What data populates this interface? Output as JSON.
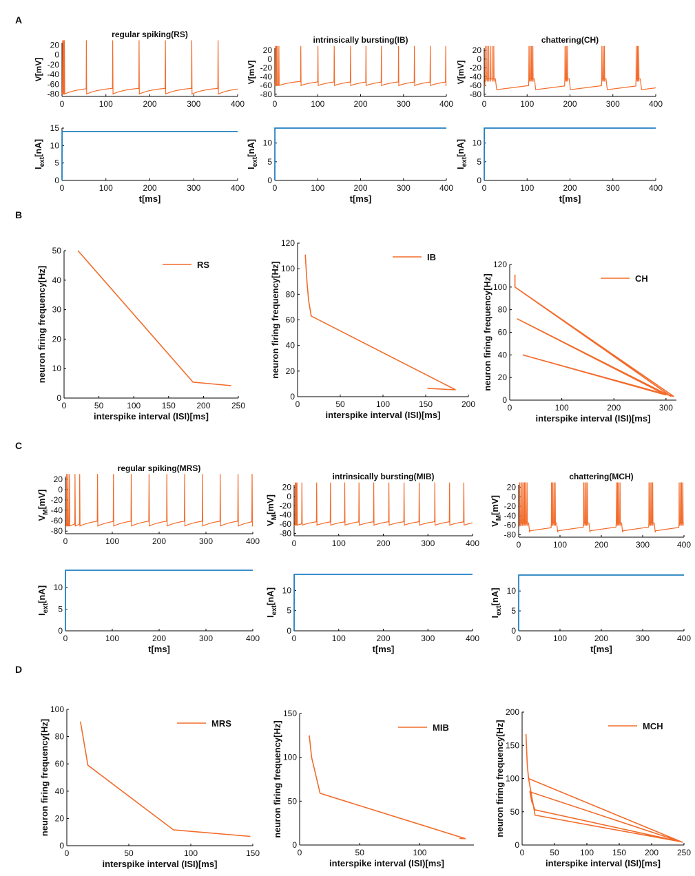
{
  "panel_letters": [
    "A",
    "B",
    "C",
    "D"
  ],
  "colors": {
    "voltage": "#f26b2a",
    "current": "#1f7fc0",
    "frequency": "#f26b2a"
  },
  "chart_data": [
    {
      "id": "A-RS-V",
      "type": "line",
      "title": "regular spiking(RS)",
      "xlabel": "",
      "ylabel": "V[mV]",
      "ylabel_sub": "",
      "xlim": [
        0,
        400
      ],
      "ylim": [
        -85,
        25
      ],
      "xticks": [
        0,
        100,
        200,
        300,
        400
      ],
      "yticks": [
        -80,
        -60,
        -40,
        -20,
        0,
        20
      ],
      "model": "rs",
      "spike_times": [
        1,
        3,
        5,
        55,
        115,
        175,
        235,
        295,
        355
      ],
      "v_rest": -80,
      "v_reset": -75,
      "v_peak": 30
    },
    {
      "id": "A-IB-V",
      "type": "line",
      "title": "intrinsically bursting(IB)",
      "xlabel": "",
      "ylabel": "V[mV]",
      "ylabel_sub": "",
      "xlim": [
        0,
        400
      ],
      "ylim": [
        -85,
        25
      ],
      "xticks": [
        0,
        100,
        200,
        300,
        400
      ],
      "yticks": [
        -80,
        -60,
        -40,
        -20,
        0,
        20
      ],
      "model": "ib",
      "spike_times": [
        1,
        3,
        5,
        9,
        60,
        100,
        138,
        176,
        212,
        248,
        288,
        325,
        362,
        398
      ],
      "v_rest": -60,
      "v_reset": -55,
      "v_peak": 30
    },
    {
      "id": "A-CH-V",
      "type": "line",
      "title": "chattering(CH)",
      "xlabel": "",
      "ylabel": "V[mV]",
      "ylabel_sub": "",
      "xlim": [
        0,
        400
      ],
      "ylim": [
        -85,
        25
      ],
      "xticks": [
        0,
        100,
        200,
        300,
        400
      ],
      "yticks": [
        -80,
        -60,
        -40,
        -20,
        0,
        20
      ],
      "model": "ch",
      "bursts": [
        [
          2,
          6,
          10,
          14,
          18,
          22
        ],
        [
          104,
          107,
          110,
          113
        ],
        [
          188,
          191,
          194
        ],
        [
          274,
          277,
          280
        ],
        [
          354,
          357,
          360
        ]
      ],
      "v_rest": -70,
      "v_plateau": -45,
      "v_peak": 30
    },
    {
      "id": "A-RS-I",
      "type": "line",
      "title": "",
      "xlabel": "t[ms]",
      "ylabel": "I",
      "ylabel_sub": "ext",
      "ylabel_unit": "[nA]",
      "xlim": [
        0,
        400
      ],
      "ylim": [
        0,
        15
      ],
      "xticks": [
        0,
        100,
        200,
        300,
        400
      ],
      "yticks": [
        0,
        5,
        10,
        15
      ],
      "model": "step",
      "current": 14
    },
    {
      "id": "A-IB-I",
      "type": "line",
      "title": "",
      "xlabel": "t[ms]",
      "ylabel": "I",
      "ylabel_sub": "ext",
      "ylabel_unit": "[nA]",
      "xlim": [
        0,
        400
      ],
      "ylim": [
        0,
        14
      ],
      "xticks": [
        0,
        100,
        200,
        300,
        400
      ],
      "yticks": [
        0,
        5,
        10
      ],
      "model": "step",
      "current": 14
    },
    {
      "id": "A-CH-I",
      "type": "line",
      "title": "",
      "xlabel": "t[ms]",
      "ylabel": "I",
      "ylabel_sub": "ext",
      "ylabel_unit": "[nA]",
      "xlim": [
        0,
        400
      ],
      "ylim": [
        0,
        14
      ],
      "xticks": [
        0,
        100,
        200,
        300,
        400
      ],
      "yticks": [
        0,
        5,
        10
      ],
      "model": "step",
      "current": 14
    },
    {
      "id": "B-RS",
      "type": "line",
      "title": "",
      "xlabel": "interspike interval (ISI)[ms]",
      "ylabel": "neuron firing frequency[Hz]",
      "xlim": [
        0,
        250
      ],
      "ylim": [
        0,
        50
      ],
      "xticks": [
        0,
        50,
        100,
        150,
        200,
        250
      ],
      "yticks": [
        0,
        10,
        20,
        30,
        40,
        50
      ],
      "legend": "RS",
      "legend_position": "top-right",
      "x": [
        20,
        185,
        240
      ],
      "y": [
        50,
        5.4,
        4.2
      ]
    },
    {
      "id": "B-IB",
      "type": "line",
      "title": "",
      "xlabel": "interspike interval (ISI)[ms]",
      "ylabel": "neuron firing frequency[Hz]",
      "xlim": [
        0,
        200
      ],
      "ylim": [
        0,
        120
      ],
      "xticks": [
        0,
        50,
        100,
        150,
        200
      ],
      "yticks": [
        0,
        20,
        40,
        60,
        80,
        100,
        120
      ],
      "legend": "IB",
      "legend_position": "top-right",
      "x": [
        9,
        11,
        13,
        16,
        185,
        152
      ],
      "y": [
        111,
        90,
        75,
        63,
        5.4,
        6.5
      ]
    },
    {
      "id": "B-CH",
      "type": "line",
      "title": "",
      "xlabel": "interspike interval (ISI)[ms]",
      "ylabel": "neuron firing frequency[Hz]",
      "xlim": [
        0,
        320
      ],
      "ylim": [
        0,
        120
      ],
      "xticks": [
        0,
        100,
        200,
        300
      ],
      "yticks": [
        0,
        20,
        40,
        60,
        80,
        100,
        120
      ],
      "legend": "CH",
      "legend_position": "top-right",
      "x": [
        10,
        10,
        310,
        14,
        300,
        25,
        315,
        10
      ],
      "y": [
        111,
        100,
        3.2,
        72,
        4.5,
        40,
        3.2,
        100
      ]
    },
    {
      "id": "C-MRS-V",
      "type": "line",
      "title": "regular spiking(MRS)",
      "xlabel": "",
      "ylabel": "V",
      "ylabel_sub": "M",
      "ylabel_unit": "[mV]",
      "xlim": [
        0,
        400
      ],
      "ylim": [
        -85,
        25
      ],
      "xticks": [
        0,
        100,
        200,
        300,
        400
      ],
      "yticks": [
        -80,
        -60,
        -40,
        -20,
        0,
        20
      ],
      "model": "rs",
      "spike_times": [
        2,
        5,
        8,
        20,
        30,
        68,
        102,
        140,
        178,
        216,
        254,
        292,
        330,
        368,
        398
      ],
      "v_rest": -70,
      "v_reset": -65,
      "v_peak": 30
    },
    {
      "id": "C-MIB-V",
      "type": "line",
      "title": "intrinsically bursting(MIB)",
      "xlabel": "",
      "ylabel": "V",
      "ylabel_sub": "M",
      "ylabel_unit": "[mV]",
      "xlim": [
        0,
        400
      ],
      "ylim": [
        -85,
        25
      ],
      "xticks": [
        0,
        100,
        200,
        300,
        400
      ],
      "yticks": [
        -80,
        -60,
        -40,
        -20,
        0,
        20
      ],
      "model": "ib",
      "spike_times": [
        2,
        4,
        6,
        17,
        50,
        81,
        113,
        145,
        178,
        212,
        246,
        280,
        315,
        348,
        380
      ],
      "v_rest": -62,
      "v_reset": -55,
      "v_peak": 30
    },
    {
      "id": "C-MCH-V",
      "type": "line",
      "title": "chattering(MCH)",
      "xlabel": "",
      "ylabel": "V",
      "ylabel_sub": "M",
      "ylabel_unit": "[mV]",
      "xlim": [
        0,
        400
      ],
      "ylim": [
        -85,
        25
      ],
      "xticks": [
        0,
        100,
        200,
        300,
        400
      ],
      "yticks": [
        -80,
        -60,
        -40,
        -20,
        0,
        20
      ],
      "model": "ch",
      "bursts": [
        [
          2,
          5,
          8,
          11,
          14,
          17,
          20
        ],
        [
          79,
          82,
          85,
          88
        ],
        [
          157,
          160,
          163,
          166
        ],
        [
          236,
          239,
          242,
          245
        ],
        [
          315,
          318,
          321,
          324
        ],
        [
          388,
          391,
          394,
          397
        ]
      ],
      "v_rest": -72,
      "v_plateau": -55,
      "v_peak": 30
    },
    {
      "id": "C-MRS-I",
      "type": "line",
      "title": "",
      "xlabel": "t[ms]",
      "ylabel": "I",
      "ylabel_sub": "ext",
      "ylabel_unit": "[nA]",
      "xlim": [
        0,
        400
      ],
      "ylim": [
        0,
        14
      ],
      "xticks": [
        0,
        100,
        200,
        300,
        400
      ],
      "yticks": [
        0,
        5,
        10
      ],
      "model": "step",
      "current": 14
    },
    {
      "id": "C-MIB-I",
      "type": "line",
      "title": "",
      "xlabel": "t[ms]",
      "ylabel": "I",
      "ylabel_sub": "ext",
      "ylabel_unit": "[nA]",
      "xlim": [
        0,
        400
      ],
      "ylim": [
        0,
        14
      ],
      "xticks": [
        0,
        100,
        200,
        300,
        400
      ],
      "yticks": [
        0,
        5,
        10
      ],
      "model": "step",
      "current": 14
    },
    {
      "id": "C-MCH-I",
      "type": "line",
      "title": "",
      "xlabel": "t[ms]",
      "ylabel": "I",
      "ylabel_sub": "ext",
      "ylabel_unit": "[nA]",
      "xlim": [
        0,
        400
      ],
      "ylim": [
        0,
        14
      ],
      "xticks": [
        0,
        100,
        200,
        300,
        400
      ],
      "yticks": [
        0,
        5,
        10
      ],
      "model": "step",
      "current": 14
    },
    {
      "id": "D-MRS",
      "type": "line",
      "title": "",
      "xlabel": "interspike interval (ISI)[ms]",
      "ylabel": "neuron firing frequency[Hz]",
      "xlim": [
        0,
        150
      ],
      "ylim": [
        0,
        100
      ],
      "xticks": [
        0,
        50,
        100,
        150
      ],
      "yticks": [
        0,
        20,
        40,
        60,
        80,
        100
      ],
      "legend": "MRS",
      "legend_position": "top-right",
      "x": [
        11,
        17,
        86,
        148
      ],
      "y": [
        91,
        59,
        11.6,
        6.8
      ]
    },
    {
      "id": "D-MIB",
      "type": "line",
      "title": "",
      "xlabel": "interspike interval (ISI)[ms]",
      "ylabel": "neuron firing frequency[Hz]",
      "xlim": [
        0,
        145
      ],
      "ylim": [
        0,
        150
      ],
      "xticks": [
        0,
        50,
        100
      ],
      "yticks": [
        0,
        50,
        100,
        150
      ],
      "legend": "MIB",
      "legend_position": "top-right",
      "x": [
        8,
        10,
        17,
        138,
        133
      ],
      "y": [
        125,
        100,
        59,
        7.2,
        7.5
      ]
    },
    {
      "id": "D-MCH",
      "type": "line",
      "title": "",
      "xlabel": "interspike interval (ISI)[ms]",
      "ylabel": "neuron firing frequency[Hz]",
      "xlim": [
        0,
        250
      ],
      "ylim": [
        0,
        200
      ],
      "xticks": [
        0,
        50,
        100,
        150,
        200,
        250
      ],
      "yticks": [
        0,
        50,
        100,
        150,
        200
      ],
      "legend": "MCH",
      "legend_position": "top-right",
      "x": [
        6,
        8,
        10,
        248,
        12,
        15,
        20,
        245,
        20,
        10,
        248
      ],
      "y": [
        167,
        120,
        100,
        4,
        80,
        65,
        53,
        5,
        45,
        100,
        4
      ]
    }
  ]
}
